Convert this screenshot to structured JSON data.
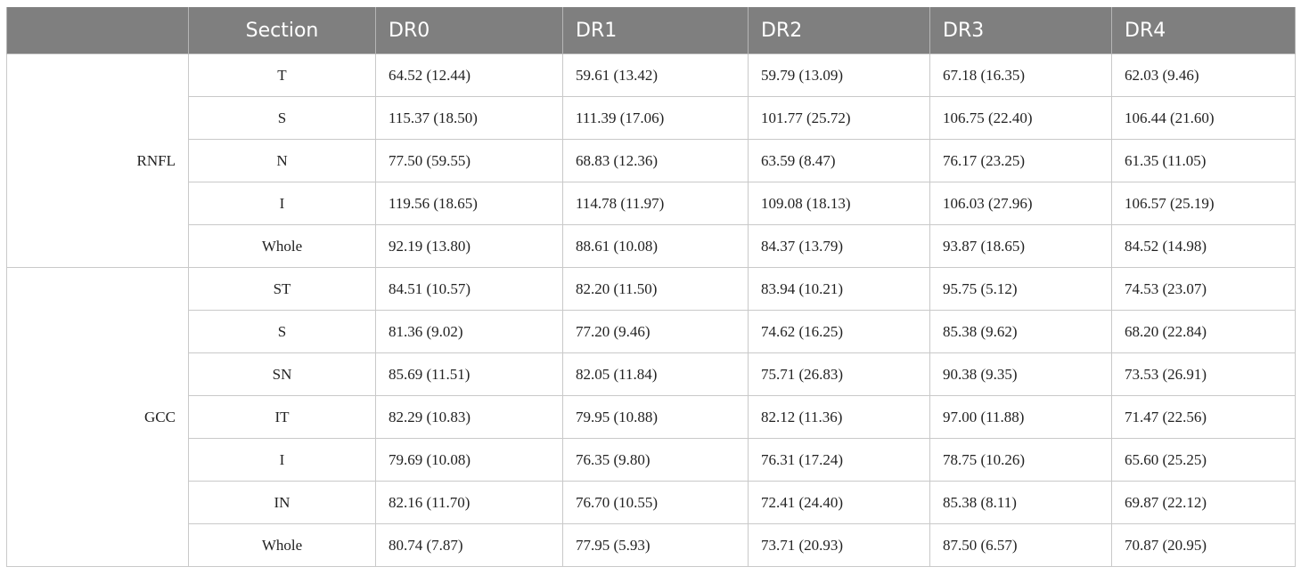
{
  "columns": [
    "Section",
    "DR0",
    "DR1",
    "DR2",
    "DR3",
    "DR4"
  ],
  "groups": [
    {
      "name": "RNFL",
      "rows": [
        {
          "section": "T",
          "values": [
            "64.52 (12.44)",
            "59.61 (13.42)",
            "59.79 (13.09)",
            "67.18 (16.35)",
            "62.03 (9.46)"
          ]
        },
        {
          "section": "S",
          "values": [
            "115.37 (18.50)",
            "111.39 (17.06)",
            "101.77 (25.72)",
            "106.75 (22.40)",
            "106.44 (21.60)"
          ]
        },
        {
          "section": "N",
          "values": [
            "77.50 (59.55)",
            "68.83 (12.36)",
            "63.59 (8.47)",
            "76.17 (23.25)",
            "61.35 (11.05)"
          ]
        },
        {
          "section": "I",
          "values": [
            "119.56 (18.65)",
            "114.78 (11.97)",
            "109.08 (18.13)",
            "106.03 (27.96)",
            "106.57 (25.19)"
          ]
        },
        {
          "section": "Whole",
          "values": [
            "92.19 (13.80)",
            "88.61 (10.08)",
            "84.37 (13.79)",
            "93.87 (18.65)",
            "84.52 (14.98)"
          ]
        }
      ]
    },
    {
      "name": "GCC",
      "rows": [
        {
          "section": "ST",
          "values": [
            "84.51 (10.57)",
            "82.20 (11.50)",
            "83.94 (10.21)",
            "95.75 (5.12)",
            "74.53 (23.07)"
          ]
        },
        {
          "section": "S",
          "values": [
            "81.36 (9.02)",
            "77.20 (9.46)",
            "74.62 (16.25)",
            "85.38 (9.62)",
            "68.20 (22.84)"
          ]
        },
        {
          "section": "SN",
          "values": [
            "85.69 (11.51)",
            "82.05 (11.84)",
            "75.71 (26.83)",
            "90.38 (9.35)",
            "73.53 (26.91)"
          ]
        },
        {
          "section": "IT",
          "values": [
            "82.29 (10.83)",
            "79.95 (10.88)",
            "82.12 (11.36)",
            "97.00 (11.88)",
            "71.47 (22.56)"
          ]
        },
        {
          "section": "I",
          "values": [
            "79.69 (10.08)",
            "76.35 (9.80)",
            "76.31 (17.24)",
            "78.75 (10.26)",
            "65.60 (25.25)"
          ]
        },
        {
          "section": "IN",
          "values": [
            "82.16 (11.70)",
            "76.70 (10.55)",
            "72.41 (24.40)",
            "85.38 (8.11)",
            "69.87 (22.12)"
          ]
        },
        {
          "section": "Whole",
          "values": [
            "80.74 (7.87)",
            "77.95 (5.93)",
            "73.71 (20.93)",
            "87.50 (6.57)",
            "70.87 (20.95)"
          ]
        }
      ]
    }
  ]
}
